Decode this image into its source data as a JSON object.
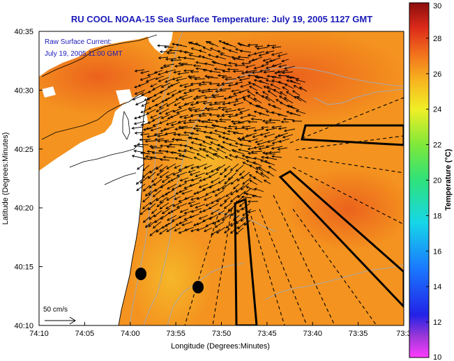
{
  "title": "RU COOL  NOAA-15  Sea Surface Temperature:  July 19, 2005 1127 GMT",
  "annotation": {
    "line1": "Raw Surface Current:",
    "line2": "July 19, 2005 11:00 GMT"
  },
  "scale_label": "50 cm/s",
  "axes": {
    "xlabel": "Longitude (Degrees:Minutes)",
    "ylabel": "Latitude (Degrees:Minutes)",
    "xticks": [
      "74:10",
      "74:05",
      "74:00",
      "73:55",
      "73:50",
      "73:45",
      "73:40",
      "73:35",
      "73:3"
    ],
    "yticks": [
      "40:35",
      "40:30",
      "40:25",
      "40:20",
      "40:15",
      "40:10"
    ]
  },
  "colorbar": {
    "label": "Temperature (°C)",
    "min": 10,
    "max": 30,
    "ticks": [
      "30",
      "28",
      "26",
      "24",
      "22",
      "20",
      "18",
      "16",
      "14",
      "12",
      "10"
    ]
  },
  "colors": {
    "sea_base": "#f4931f",
    "sea_warm": "#ee6a1c",
    "sea_hot": "#e9451b",
    "sea_cool": "#f5b82a",
    "land": "#ffffff",
    "title": "#1a1ab8"
  }
}
